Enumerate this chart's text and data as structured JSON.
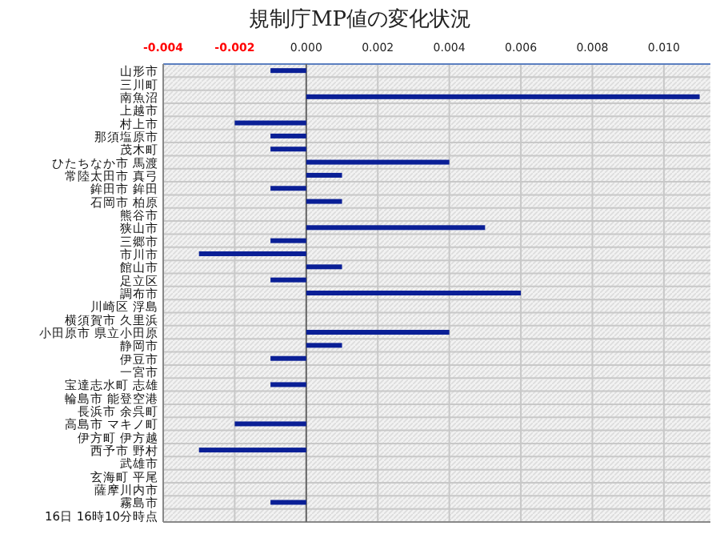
{
  "chart_data": {
    "type": "bar",
    "orientation": "horizontal",
    "title": "規制庁MP値の変化状況",
    "categories": [
      "山形市",
      "三川町",
      "南魚沼",
      "上越市",
      "村上市",
      "那須塩原市",
      "茂木町",
      "ひたちなか市 馬渡",
      "常陸太田市 真弓",
      "鉾田市 鉾田",
      "石岡市 柏原",
      "熊谷市",
      "狭山市",
      "三郷市",
      "市川市",
      "館山市",
      "足立区",
      "調布市",
      "川崎区 浮島",
      "横須賀市 久里浜",
      "小田原市 県立小田原",
      "静岡市",
      "伊豆市",
      "一宮市",
      "宝達志水町 志雄",
      "輪島市 能登空港",
      "長浜市 余呉町",
      "高島市 マキノ町",
      "伊方町 伊方越",
      "西予市 野村",
      "武雄市",
      "玄海町 平尾",
      "薩摩川内市",
      "霧島市",
      "16日 16時10分時点"
    ],
    "values": [
      -0.001,
      0,
      0.011,
      0,
      -0.002,
      -0.001,
      -0.001,
      0.004,
      0.001,
      -0.001,
      0.001,
      0,
      0.005,
      -0.001,
      -0.003,
      0.001,
      -0.001,
      0.006,
      0,
      0,
      0.004,
      0.001,
      -0.001,
      0,
      -0.001,
      0,
      0,
      -0.002,
      0,
      -0.003,
      0,
      0,
      0,
      -0.001,
      null
    ],
    "color": "#0a1f96",
    "xlim": [
      -0.004,
      0.0113
    ],
    "xticks": [
      {
        "value": -0.004,
        "label": "-0.004"
      },
      {
        "value": -0.002,
        "label": "-0.002"
      },
      {
        "value": 0,
        "label": "0.000"
      },
      {
        "value": 0.002,
        "label": "0.002"
      },
      {
        "value": 0.004,
        "label": "0.004"
      },
      {
        "value": 0.006,
        "label": "0.006"
      },
      {
        "value": 0.008,
        "label": "0.008"
      },
      {
        "value": 0.01,
        "label": "0.010"
      }
    ],
    "grid": true
  }
}
